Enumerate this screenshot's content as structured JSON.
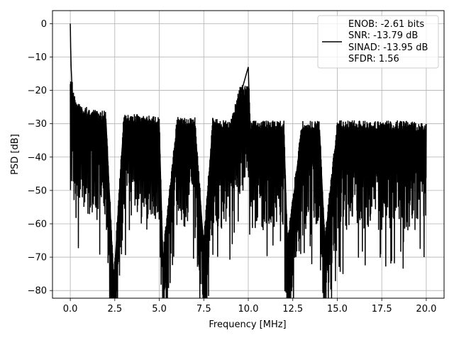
{
  "chart_data": {
    "type": "line",
    "title": "",
    "xlabel": "Frequency [MHz]",
    "ylabel": "PSD [dB]",
    "xlim": [
      -1.0,
      21.0
    ],
    "ylim": [
      -82.3,
      3.9
    ],
    "xticks": [
      0.0,
      2.5,
      5.0,
      7.5,
      10.0,
      12.5,
      15.0,
      17.5,
      20.0
    ],
    "xtick_labels": [
      "0.0",
      "2.5",
      "5.0",
      "7.5",
      "10.0",
      "12.5",
      "15.0",
      "17.5",
      "20.0"
    ],
    "yticks": [
      0,
      -10,
      -20,
      -30,
      -40,
      -50,
      -60,
      -70,
      -80
    ],
    "ytick_labels": [
      "0",
      "−10",
      "−20",
      "−30",
      "−40",
      "−50",
      "−60",
      "−70",
      "−80"
    ],
    "grid": true,
    "legend_position": "top-right",
    "series_color": "#000000",
    "series": [
      {
        "name": "",
        "x": [
          0.0,
          0.02,
          0.05,
          0.08,
          0.12,
          0.2,
          0.35,
          0.6,
          1.0,
          1.5,
          2.0,
          2.44,
          3.0,
          4.0,
          5.0,
          5.2,
          6.0,
          7.0,
          7.5,
          8.0,
          9.0,
          10.0,
          10.1,
          11.0,
          12.0,
          12.2,
          13.0,
          14.0,
          14.3,
          15.0,
          16.0,
          17.0,
          18.0,
          19.0,
          20.0
        ],
        "values": [
          0,
          -7,
          -13,
          -17,
          -21,
          -24,
          -26,
          -27,
          -28,
          -29,
          -29,
          -78.2,
          -30,
          -30,
          -31,
          -71.5,
          -31,
          -31,
          -67,
          -31,
          -32,
          -13,
          -32,
          -32,
          -32,
          -67.5,
          -32,
          -32,
          -66,
          -32,
          -32,
          -32,
          -32,
          -32,
          -33
        ]
      }
    ],
    "legend_entries": [
      "ENOB: -2.61 bits",
      "SNR: -13.79 dB",
      "SINAD: -13.95 dB",
      "SFDR: 1.56"
    ]
  }
}
